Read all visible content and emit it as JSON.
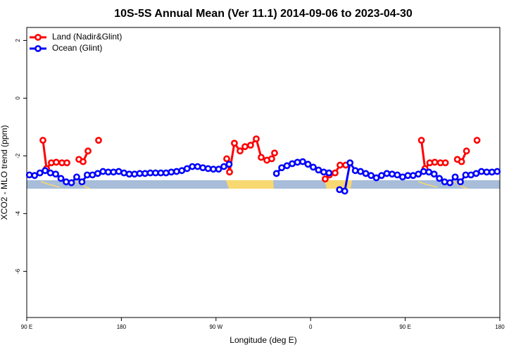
{
  "chart_data": {
    "type": "line",
    "title": "10S-5S Annual Mean (Ver 11.1)   2014-09-06 to 2023-04-30",
    "x_label": "Longitude (deg E)",
    "y_label": "XCO2 - MLO trend (ppm)",
    "xlim": [
      90,
      540
    ],
    "xticks": [
      {
        "value": 90,
        "label": "90 E"
      },
      180,
      {
        "value": 270,
        "label": "90 W"
      },
      {
        "value": 360,
        "label": "0"
      },
      {
        "value": 450,
        "label": "90 E"
      },
      {
        "value": 540,
        "label": "180"
      }
    ],
    "ylim": [
      -7.6,
      2.45
    ],
    "yticks": [
      2,
      0,
      -2,
      -4,
      -6
    ],
    "legend": "top-left",
    "series": [
      {
        "name": "Land (Nadir&Glint)",
        "color": "#ff0000",
        "x": [
          105.4,
          108.8,
          113.4,
          118.1,
          123.5,
          128.2,
          null,
          139.6,
          143.6,
          148.3,
          null,
          158.3,
          null,
          280.2,
          282.9,
          287.5,
          292.9,
          297.6,
          302.9,
          308.3,
          313.0,
          318.4,
          323.0,
          325.7,
          null,
          373.9,
          377.9,
          383.3,
          388.0,
          393.4,
          null,
          465.4,
          468.8,
          473.4,
          478.1,
          483.5,
          488.2,
          null,
          499.6,
          503.6,
          508.3,
          null,
          518.3
        ],
        "values": [
          -1.46,
          -2.44,
          -2.24,
          -2.22,
          -2.24,
          -2.24,
          null,
          -2.12,
          -2.2,
          -1.83,
          null,
          -1.46,
          null,
          -2.1,
          -2.56,
          -1.56,
          -1.83,
          -1.68,
          -1.63,
          -1.41,
          -2.05,
          -2.15,
          -2.1,
          -1.9,
          null,
          -2.8,
          -2.66,
          -2.59,
          -2.32,
          -2.32,
          null,
          -1.46,
          -2.44,
          -2.24,
          -2.22,
          -2.24,
          -2.24,
          null,
          -2.12,
          -2.2,
          -1.83,
          null,
          -1.46
        ]
      },
      {
        "name": "Ocean (Glint)",
        "color": "#0000ff",
        "x": [
          92.5,
          97.5,
          102.5,
          107.5,
          112.5,
          117.5,
          122.5,
          127.5,
          132.5,
          137.5,
          142.5,
          147.5,
          152.5,
          157.5,
          162.5,
          167.5,
          172.5,
          177.5,
          182.5,
          187.5,
          192.5,
          197.5,
          202.5,
          207.5,
          212.5,
          217.5,
          222.5,
          227.5,
          232.5,
          237.5,
          242.5,
          247.5,
          252.5,
          257.5,
          262.5,
          267.5,
          272.5,
          277.5,
          282.5,
          287.5,
          292.5,
          297.5,
          302.5,
          307.5,
          312.5,
          317.5,
          322.5,
          327.5,
          332.5,
          337.5,
          342.5,
          347.5,
          352.5,
          357.5,
          362.5,
          367.5,
          372.5,
          377.5,
          382.5,
          387.5,
          392.5,
          397.5,
          402.5,
          407.5,
          412.5,
          417.5,
          422.5,
          427.5,
          432.5,
          437.5,
          442.5,
          447.5,
          452.5,
          457.5,
          462.5,
          467.5,
          472.5,
          477.5,
          482.5,
          487.5,
          492.5,
          497.5,
          502.5,
          507.5,
          512.5,
          517.5,
          522.5,
          527.5,
          532.5,
          537.5
        ],
        "values": [
          -2.66,
          -2.68,
          -2.59,
          -2.51,
          -2.59,
          -2.63,
          -2.78,
          -2.9,
          -2.93,
          -2.73,
          -2.9,
          -2.66,
          -2.66,
          -2.61,
          -2.54,
          -2.56,
          -2.56,
          -2.54,
          -2.59,
          -2.63,
          -2.63,
          -2.61,
          -2.61,
          -2.59,
          -2.59,
          -2.59,
          -2.59,
          -2.56,
          -2.54,
          -2.51,
          -2.44,
          -2.37,
          -2.37,
          -2.41,
          -2.44,
          -2.46,
          -2.46,
          -2.37,
          -2.29,
          null,
          null,
          null,
          null,
          null,
          null,
          null,
          null,
          -2.61,
          -2.41,
          -2.34,
          -2.27,
          -2.22,
          -2.2,
          -2.29,
          -2.39,
          -2.49,
          -2.56,
          -2.59,
          null,
          -3.17,
          -3.22,
          -2.24,
          -2.51,
          -2.54,
          -2.61,
          -2.68,
          -2.76,
          -2.68,
          -2.61,
          -2.63,
          -2.66,
          -2.73,
          -2.68,
          -2.68,
          -2.63,
          -2.54,
          -2.56,
          -2.63,
          -2.78,
          -2.9,
          -2.93,
          -2.73,
          -2.9,
          -2.66,
          -2.66,
          -2.61,
          -2.54,
          -2.56,
          -2.56,
          -2.54
        ]
      }
    ]
  }
}
